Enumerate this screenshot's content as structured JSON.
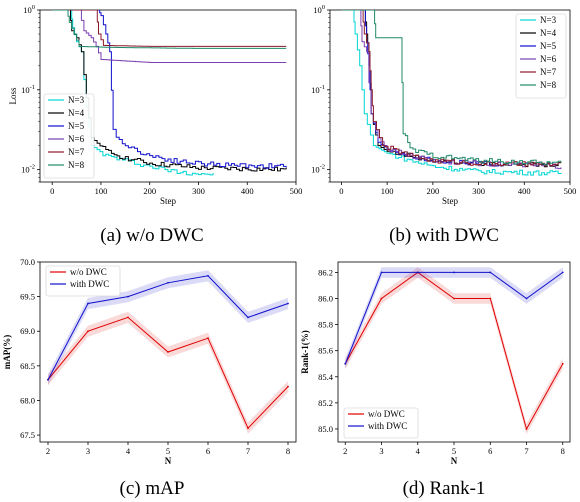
{
  "captions": [
    "(a)  w/o DWC",
    "(b)  with DWC",
    "(c)  mAP",
    "(d)  Rank-1"
  ],
  "chart_data": [
    {
      "type": "line",
      "title": "",
      "xlabel": "Step",
      "ylabel": "Loss",
      "yscale": "log",
      "xlim": [
        -25,
        500
      ],
      "ylim": [
        0.007,
        1.0
      ],
      "xticks": [
        0,
        100,
        200,
        300,
        400,
        500
      ],
      "yticks": [
        {
          "value": 1,
          "label": "10^0"
        },
        {
          "value": 0.1,
          "label": "10^-1"
        },
        {
          "value": 0.01,
          "label": "10^-2"
        }
      ],
      "legend": "lower-left",
      "series": [
        {
          "name": "N=3",
          "color": "#00d5d5",
          "points": [
            [
              0,
              1
            ],
            [
              38,
              1
            ],
            [
              42,
              0.6
            ],
            [
              50,
              0.4
            ],
            [
              60,
              0.3
            ],
            [
              70,
              0.06
            ],
            [
              80,
              0.02
            ],
            [
              110,
              0.015
            ],
            [
              150,
              0.013
            ],
            [
              200,
              0.011
            ],
            [
              250,
              0.0095
            ],
            [
              300,
              0.009
            ],
            [
              330,
              0.0088
            ]
          ]
        },
        {
          "name": "N=4",
          "color": "#000000",
          "points": [
            [
              0,
              1
            ],
            [
              35,
              1
            ],
            [
              40,
              0.55
            ],
            [
              50,
              0.45
            ],
            [
              60,
              0.3
            ],
            [
              70,
              0.08
            ],
            [
              80,
              0.025
            ],
            [
              110,
              0.017
            ],
            [
              150,
              0.014
            ],
            [
              200,
              0.012
            ],
            [
              300,
              0.0105
            ],
            [
              480,
              0.01
            ]
          ]
        },
        {
          "name": "N=5",
          "color": "#1010cc",
          "points": [
            [
              0,
              1
            ],
            [
              95,
              1
            ],
            [
              100,
              0.85
            ],
            [
              110,
              0.5
            ],
            [
              118,
              0.3
            ],
            [
              125,
              0.03
            ],
            [
              150,
              0.02
            ],
            [
              200,
              0.015
            ],
            [
              250,
              0.013
            ],
            [
              300,
              0.012
            ],
            [
              350,
              0.0115
            ],
            [
              480,
              0.011
            ]
          ]
        },
        {
          "name": "N=6",
          "color": "#7a3fb0",
          "points": [
            [
              0,
              1
            ],
            [
              55,
              1
            ],
            [
              65,
              0.55
            ],
            [
              80,
              0.45
            ],
            [
              90,
              0.35
            ],
            [
              100,
              0.24
            ],
            [
              200,
              0.22
            ],
            [
              480,
              0.22
            ]
          ]
        },
        {
          "name": "N=7",
          "color": "#8b1a2a",
          "points": [
            [
              0,
              1
            ],
            [
              90,
              1
            ],
            [
              95,
              0.5
            ],
            [
              105,
              0.36
            ],
            [
              200,
              0.35
            ],
            [
              480,
              0.35
            ]
          ]
        },
        {
          "name": "N=8",
          "color": "#1e8a6a",
          "points": [
            [
              0,
              1
            ],
            [
              30,
              1
            ],
            [
              35,
              0.7
            ],
            [
              45,
              0.5
            ],
            [
              55,
              0.35
            ],
            [
              120,
              0.34
            ],
            [
              300,
              0.33
            ],
            [
              480,
              0.33
            ]
          ]
        }
      ]
    },
    {
      "type": "line",
      "title": "",
      "xlabel": "Step",
      "ylabel": "",
      "yscale": "log",
      "xlim": [
        -25,
        500
      ],
      "ylim": [
        0.007,
        1.0
      ],
      "xticks": [
        0,
        100,
        200,
        300,
        400,
        500
      ],
      "yticks": [
        {
          "value": 1,
          "label": "10^0"
        },
        {
          "value": 0.1,
          "label": "10^-1"
        },
        {
          "value": 0.01,
          "label": "10^-2"
        }
      ],
      "legend": "top-right",
      "series": [
        {
          "name": "N=3",
          "color": "#00d5d5",
          "points": [
            [
              0,
              1
            ],
            [
              25,
              1
            ],
            [
              30,
              0.5
            ],
            [
              40,
              0.2
            ],
            [
              50,
              0.05
            ],
            [
              70,
              0.02
            ],
            [
              100,
              0.016
            ],
            [
              150,
              0.013
            ],
            [
              200,
              0.011
            ],
            [
              300,
              0.0095
            ],
            [
              480,
              0.009
            ]
          ]
        },
        {
          "name": "N=4",
          "color": "#000000",
          "points": [
            [
              0,
              1
            ],
            [
              50,
              1
            ],
            [
              55,
              0.5
            ],
            [
              60,
              0.3
            ],
            [
              65,
              0.05
            ],
            [
              80,
              0.02
            ],
            [
              100,
              0.017
            ],
            [
              150,
              0.015
            ],
            [
              200,
              0.013
            ],
            [
              300,
              0.012
            ],
            [
              480,
              0.0115
            ]
          ]
        },
        {
          "name": "N=5",
          "color": "#1010cc",
          "points": [
            [
              0,
              1
            ],
            [
              50,
              1
            ],
            [
              55,
              0.4
            ],
            [
              60,
              0.2
            ],
            [
              65,
              0.05
            ],
            [
              80,
              0.022
            ],
            [
              100,
              0.018
            ],
            [
              150,
              0.015
            ],
            [
              200,
              0.013
            ],
            [
              300,
              0.012
            ],
            [
              350,
              0.0115
            ]
          ]
        },
        {
          "name": "N=6",
          "color": "#7a3fb0",
          "points": [
            [
              0,
              1
            ],
            [
              40,
              1
            ],
            [
              45,
              0.4
            ],
            [
              55,
              0.3
            ],
            [
              65,
              0.05
            ],
            [
              80,
              0.025
            ],
            [
              100,
              0.018
            ],
            [
              150,
              0.015
            ],
            [
              200,
              0.013
            ],
            [
              300,
              0.012
            ],
            [
              480,
              0.011
            ]
          ]
        },
        {
          "name": "N=7",
          "color": "#8b1a2a",
          "points": [
            [
              0,
              1
            ],
            [
              45,
              1
            ],
            [
              50,
              0.5
            ],
            [
              60,
              0.3
            ],
            [
              65,
              0.1
            ],
            [
              70,
              0.04
            ],
            [
              90,
              0.02
            ],
            [
              150,
              0.015
            ],
            [
              200,
              0.013
            ],
            [
              300,
              0.012
            ],
            [
              480,
              0.0115
            ]
          ]
        },
        {
          "name": "N=8",
          "color": "#1e8a6a",
          "points": [
            [
              0,
              1
            ],
            [
              70,
              1
            ],
            [
              75,
              0.45
            ],
            [
              130,
              0.45
            ],
            [
              135,
              0.03
            ],
            [
              150,
              0.018
            ],
            [
              200,
              0.015
            ],
            [
              300,
              0.013
            ],
            [
              480,
              0.012
            ]
          ]
        }
      ]
    },
    {
      "type": "line",
      "title": "",
      "xlabel": "N",
      "ylabel": "mAP(%)",
      "xlim": [
        1.8,
        8.2
      ],
      "ylim": [
        67.4,
        70.0
      ],
      "xticks": [
        2,
        3,
        4,
        5,
        6,
        7,
        8
      ],
      "yticks": [
        67.5,
        68.0,
        68.5,
        69.0,
        69.5,
        70.0
      ],
      "ytick_decimals": 1,
      "legend": "top-left",
      "band": 0.08,
      "x": [
        2,
        3,
        4,
        5,
        6,
        7,
        8
      ],
      "series": [
        {
          "name": "w/o DWC",
          "color": "#e00000",
          "values": [
            68.3,
            69.0,
            69.2,
            68.7,
            68.9,
            67.6,
            68.2
          ]
        },
        {
          "name": "with DWC",
          "color": "#1010cc",
          "values": [
            68.3,
            69.4,
            69.5,
            69.7,
            69.8,
            69.2,
            69.4
          ]
        }
      ]
    },
    {
      "type": "line",
      "title": "",
      "xlabel": "N",
      "ylabel": "Rank-1(%)",
      "xlim": [
        1.8,
        8.2
      ],
      "ylim": [
        84.9,
        86.28
      ],
      "xticks": [
        2,
        3,
        4,
        5,
        6,
        7,
        8
      ],
      "yticks": [
        85.0,
        85.2,
        85.4,
        85.6,
        85.8,
        86.0,
        86.2
      ],
      "ytick_decimals": 1,
      "legend": "bottom-left",
      "band": 0.04,
      "x": [
        2,
        3,
        4,
        5,
        6,
        7,
        8
      ],
      "series": [
        {
          "name": "w/o DWC",
          "color": "#e00000",
          "values": [
            85.5,
            86.0,
            86.2,
            86.0,
            86.0,
            85.0,
            85.5
          ]
        },
        {
          "name": "with DWC",
          "color": "#1010cc",
          "values": [
            85.5,
            86.2,
            86.2,
            86.2,
            86.2,
            86.0,
            86.2
          ]
        }
      ]
    }
  ]
}
